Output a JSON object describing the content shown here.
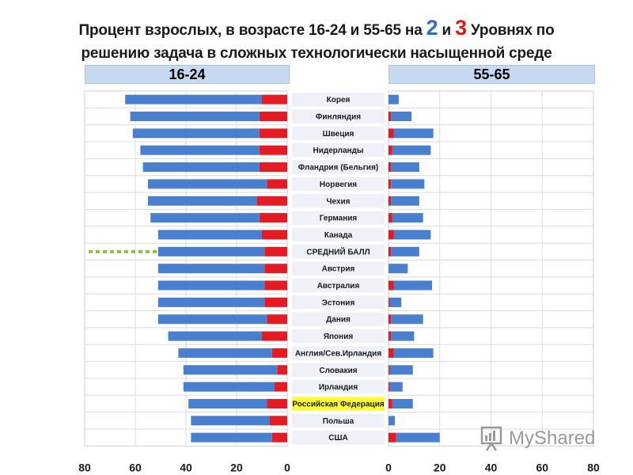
{
  "title": {
    "part1": "Процент взрослых, в возрасте 16-24 и 55-65 на ",
    "level2": "2",
    "and": " и ",
    "level3": "3",
    "part2": " Уровнях по",
    "line2": "решению задача в сложных технологически насыщенной среде"
  },
  "age_groups": {
    "young": "16-24",
    "old": "55-65"
  },
  "colors": {
    "level2": "#4a7fd0",
    "level3": "#e41b23",
    "highlight": "#ffff33",
    "average_marker": "#8fbf3f"
  },
  "watermark": "MyShared",
  "chart_data": {
    "type": "bar",
    "orientation": "horizontal",
    "layout": "back-to-back, stacked",
    "title": "Процент взрослых, в возрасте 16-24 и 55-65 на 2 и 3 Уровнях по решению задача в сложных технологически насыщенной среде",
    "categories": [
      "Корея",
      "Финляндия",
      "Швеция",
      "Нидерланды",
      "Фландрия (Бельгия)",
      "Норвегия",
      "Чехия",
      "Германия",
      "Канада",
      "СРЕДНИЙ БАЛЛ",
      "Австрия",
      "Австралия",
      "Эстония",
      "Дания",
      "Япония",
      "Англия/Сев.Ирландия",
      "Словакия",
      "Ирландия",
      "Российская Федерация",
      "Польша",
      "США"
    ],
    "highlighted_category": "Российская Федерация",
    "average_category": "СРЕДНИЙ БАЛЛ",
    "panels": [
      {
        "age": "16-24",
        "xlim": [
          80,
          0
        ],
        "ticks": [
          "80",
          "60",
          "40",
          "20",
          "0"
        ],
        "series": [
          {
            "level": "3",
            "values": [
              10,
              11,
              11,
              11,
              11,
              8,
              12,
              11,
              10,
              9,
              9,
              9,
              9,
              8,
              10,
              6,
              4,
              5,
              8,
              7,
              6
            ]
          },
          {
            "level": "2",
            "values": [
              54,
              51,
              50,
              47,
              46,
              47,
              43,
              43,
              41,
              42,
              42,
              42,
              42,
              43,
              37,
              37,
              37,
              36,
              31,
              31,
              32
            ]
          }
        ]
      },
      {
        "age": "55-65",
        "xlim": [
          0,
          80
        ],
        "ticks": [
          "0",
          "20",
          "40",
          "60",
          "80"
        ],
        "series": [
          {
            "level": "3",
            "values": [
              0,
              1,
              2,
              1.5,
              1,
              1,
              1,
              1.5,
              2,
              1,
              0,
              2,
              0.5,
              1,
              1,
              2,
              0.5,
              0.5,
              1.5,
              0,
              3
            ]
          },
          {
            "level": "2",
            "values": [
              4,
              8,
              15.5,
              15,
              11,
              13,
              11,
              12,
              14.5,
              11,
              7.5,
              15,
              4.5,
              12.5,
              9,
              15.5,
              9,
              5,
              8,
              2.5,
              17
            ]
          }
        ]
      }
    ]
  }
}
